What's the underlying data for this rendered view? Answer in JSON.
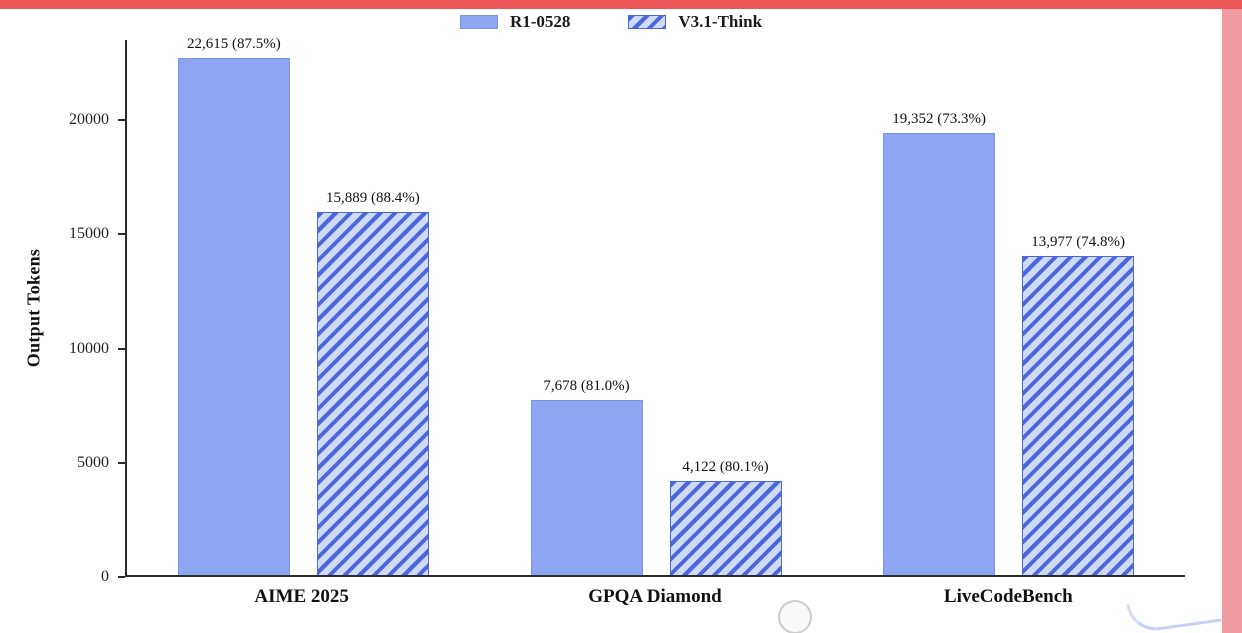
{
  "page": {
    "top_strip_color": "#ee5757",
    "right_strip_color": "#f09aa1",
    "axis_color": "#2b2b2b",
    "background": "#ffffff"
  },
  "chart_data": {
    "type": "bar",
    "title": "",
    "xlabel": "",
    "ylabel": "Output Tokens",
    "categories": [
      "AIME 2025",
      "GPQA Diamond",
      "LiveCodeBench"
    ],
    "series": [
      {
        "name": "R1-0528",
        "style": "solid",
        "fill": "#8ca6f1",
        "edge": "#7a93e8",
        "values": [
          22615,
          7678,
          19352
        ],
        "labels": [
          "22,615 (87.5%)",
          "7,678 (81.0%)",
          "19,352 (73.3%)"
        ]
      },
      {
        "name": "V3.1-Think",
        "style": "hatch",
        "stripe": "#4a67dd",
        "fill": "#cfdaf8",
        "edge": "#4a67dd",
        "values": [
          15889,
          4122,
          13977
        ],
        "labels": [
          "15,889 (88.4%)",
          "4,122 (80.1%)",
          "13,977 (74.8%)"
        ]
      }
    ],
    "yticks": [
      0,
      5000,
      10000,
      15000,
      20000
    ],
    "ylim": [
      0,
      23500
    ],
    "grid": false,
    "legend_position": "top-center"
  }
}
